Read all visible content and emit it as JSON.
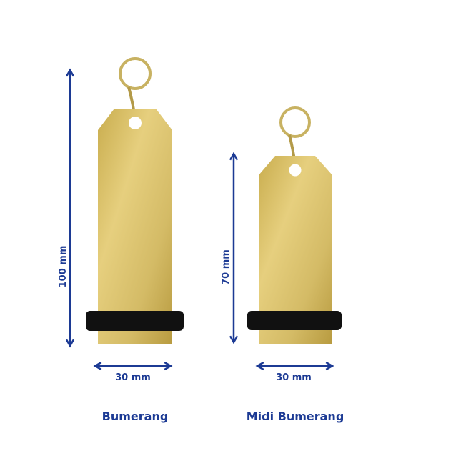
{
  "colors": {
    "annotation": "#1c3a94",
    "gold": "#d9c06a",
    "band": "#111111",
    "background": "#ffffff"
  },
  "products": [
    {
      "name": "Bumerang",
      "height_label": "100 mm",
      "width_label": "30 mm"
    },
    {
      "name": "Midi Bumerang",
      "height_label": "70 mm",
      "width_label": "30 mm"
    }
  ]
}
